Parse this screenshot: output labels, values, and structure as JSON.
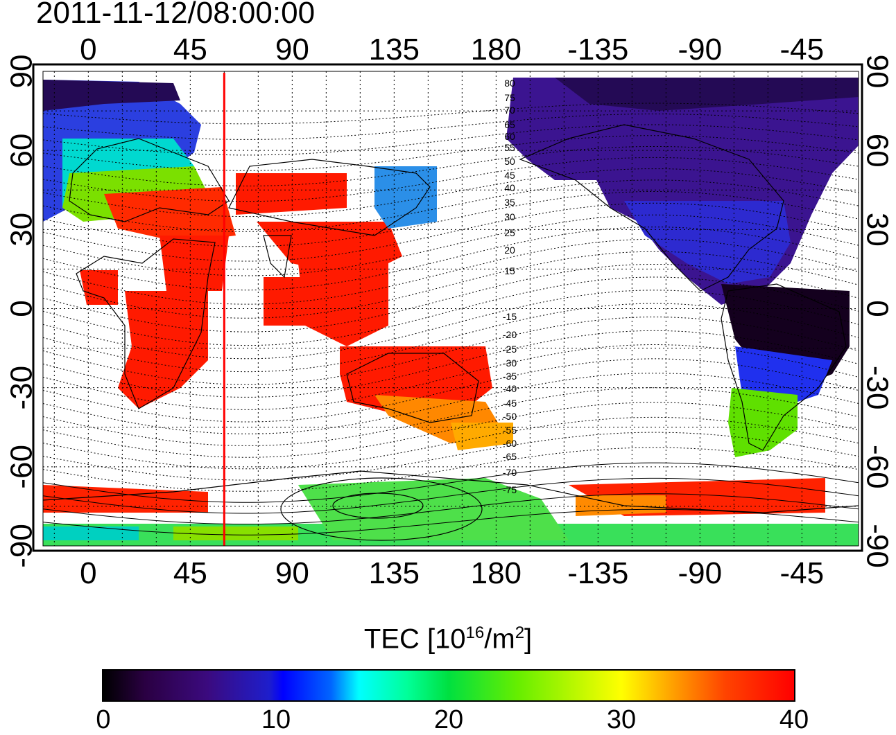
{
  "title": "2011-11-12/08:00:00",
  "map": {
    "lon_ticks_top": [
      "0",
      "45",
      "90",
      "135",
      "180",
      "-135",
      "-90",
      "-45"
    ],
    "lon_ticks_bottom": [
      "0",
      "45",
      "90",
      "135",
      "180",
      "-135",
      "-90",
      "-45"
    ],
    "lat_ticks_left": [
      "90",
      "60",
      "30",
      "0",
      "-30",
      "-60",
      "-90"
    ],
    "lat_ticks_right": [
      "90",
      "60",
      "30",
      "0",
      "-30",
      "-60",
      "-90"
    ],
    "lon_range": [
      -20,
      340
    ],
    "lat_range": [
      -90,
      90
    ],
    "grid": true,
    "red_line_longitude": 60,
    "mag_lat_labels": [
      "80",
      "75",
      "70",
      "65",
      "60",
      "55",
      "50",
      "45",
      "40",
      "35",
      "30",
      "25",
      "20",
      "15",
      "-15",
      "-20",
      "-25",
      "-30",
      "-35",
      "-40",
      "-45",
      "-50",
      "-55",
      "-60",
      "-65",
      "-70",
      "-75"
    ]
  },
  "colorbar": {
    "label_main": "TEC  [10",
    "label_exp": "16",
    "label_unit": "/m",
    "label_exp2": "2",
    "label_close": "]",
    "ticks": [
      "0",
      "10",
      "20",
      "30",
      "40"
    ],
    "range": [
      0,
      40
    ]
  },
  "colors": {
    "grid": "#000000",
    "red_line": "#ff0000",
    "low": "#000000",
    "mid_low": "#3b0a7e",
    "blue": "#0000ff",
    "cyan": "#00ffff",
    "green": "#00e040",
    "yellow": "#ffff00",
    "orange": "#ff9900",
    "high": "#ff0000"
  }
}
